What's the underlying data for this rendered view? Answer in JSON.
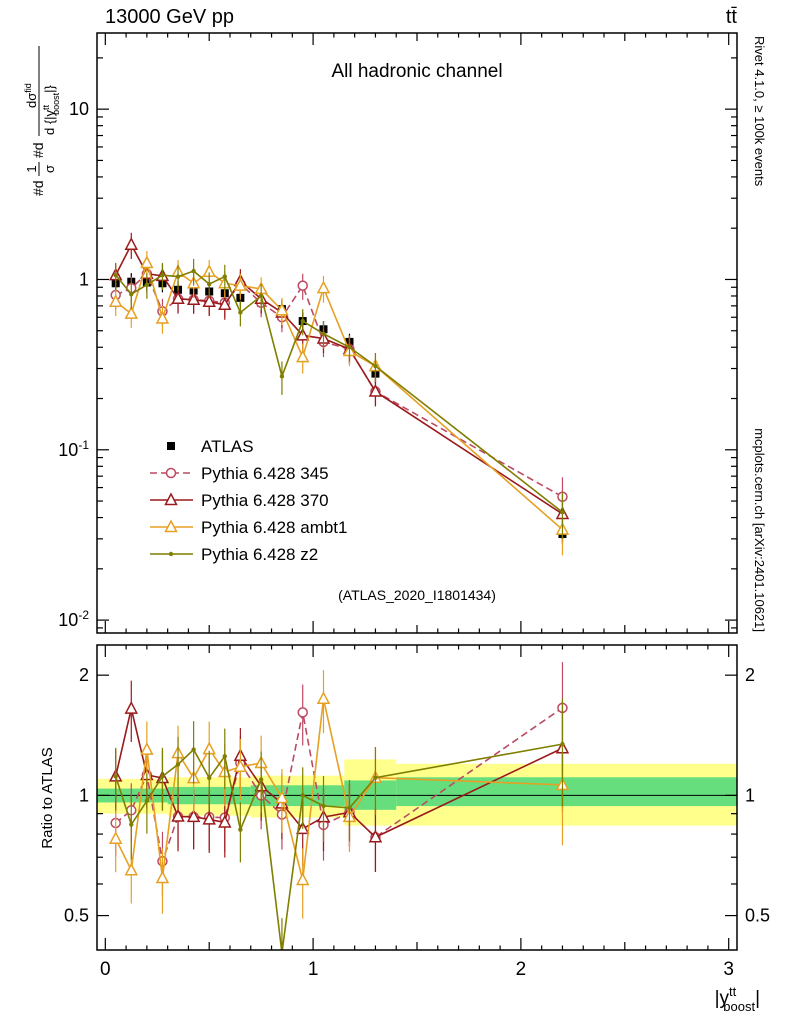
{
  "header": {
    "left": "13000 GeV pp",
    "right": "tt̄"
  },
  "side_notes": {
    "top": "Rivet 4.1.0, ≥ 100k events",
    "bottom": "mcplots.cern.ch [arXiv:2401.10621]"
  },
  "main_panel": {
    "title": "All hadronic channel",
    "watermark": "(ATLAS_2020_I1801434)",
    "ylabel": {
      "d1": "#d",
      "f1num": "1",
      "f1den": "σ",
      "d2": "#d",
      "f2num_base": "dσ",
      "f2num_sup": "fid",
      "f2den_pre": "d {|y",
      "f2den_sup": "tt",
      "f2den_sub": "boost",
      "f2den_post": "|}"
    }
  },
  "ratio_panel": {
    "ylabel": "Ratio to ATLAS"
  },
  "xaxis": {
    "pre": "|y",
    "sup": "tt",
    "sub": "boost",
    "post": "|"
  },
  "chart_data": {
    "type": "line",
    "title": "All hadronic channel",
    "xlabel": "|y^tt_boost|",
    "ylabel": "#d 1/σ #d dσ^fid / d{|y^tt_boost|}",
    "ratio_ylabel": "Ratio to ATLAS",
    "xlim": [
      -0.04,
      3.04
    ],
    "ylim_main": [
      0.0084,
      28
    ],
    "ylim_ratio": [
      0.41,
      2.38
    ],
    "x_major_ticks": [
      0,
      1,
      2,
      3
    ],
    "ratio_major_ticks": [
      0.5,
      1,
      2
    ],
    "legend_position": "inside-left-middle",
    "x": [
      0.05,
      0.125,
      0.2,
      0.275,
      0.35,
      0.425,
      0.5,
      0.575,
      0.65,
      0.75,
      0.85,
      0.95,
      1.05,
      1.175,
      1.3,
      2.2
    ],
    "series": [
      {
        "name": "ATLAS",
        "color": "#000000",
        "marker": "square",
        "filled": true,
        "line": "none",
        "values": [
          0.95,
          0.97,
          0.96,
          0.95,
          0.87,
          0.86,
          0.85,
          0.83,
          0.78,
          0.73,
          0.67,
          0.57,
          0.51,
          0.43,
          0.28,
          0.032
        ],
        "errs": [
          0.11,
          0.12,
          0.12,
          0.11,
          0.1,
          0.1,
          0.1,
          0.1,
          0.09,
          0.09,
          0.08,
          0.07,
          0.06,
          0.05,
          0.034,
          0.004
        ]
      },
      {
        "name": "Pythia 6.428 345",
        "color": "#bc4a62",
        "marker": "circle",
        "filled": false,
        "line": "dashed",
        "values": [
          0.81,
          0.89,
          1.08,
          0.65,
          0.77,
          0.76,
          0.75,
          0.73,
          0.94,
          0.73,
          0.6,
          0.92,
          0.43,
          0.39,
          0.22,
          0.053
        ],
        "errs": [
          0.14,
          0.15,
          0.18,
          0.12,
          0.13,
          0.13,
          0.13,
          0.13,
          0.16,
          0.13,
          0.11,
          0.16,
          0.08,
          0.07,
          0.04,
          0.016
        ]
      },
      {
        "name": "Pythia 6.428 370",
        "color": "#9a1a1c",
        "marker": "triangle",
        "filled": false,
        "line": "solid",
        "values": [
          1.06,
          1.6,
          1.08,
          1.05,
          0.77,
          0.76,
          0.74,
          0.71,
          0.98,
          0.77,
          0.64,
          0.47,
          0.45,
          0.39,
          0.22,
          0.042
        ],
        "errs": [
          0.18,
          0.28,
          0.19,
          0.18,
          0.14,
          0.13,
          0.13,
          0.13,
          0.17,
          0.14,
          0.12,
          0.09,
          0.08,
          0.07,
          0.04,
          0.013
        ]
      },
      {
        "name": "Pythia 6.428 ambt1",
        "color": "#e6a023",
        "marker": "triangle",
        "filled": false,
        "line": "solid",
        "values": [
          0.74,
          0.63,
          1.25,
          0.59,
          1.11,
          0.95,
          1.11,
          0.95,
          0.92,
          0.88,
          0.66,
          0.35,
          0.89,
          0.38,
          0.31,
          0.034
        ],
        "errs": [
          0.13,
          0.11,
          0.22,
          0.11,
          0.19,
          0.17,
          0.19,
          0.17,
          0.16,
          0.15,
          0.12,
          0.07,
          0.16,
          0.07,
          0.06,
          0.01
        ]
      },
      {
        "name": "Pythia 6.428 z2",
        "color": "#7f7f00",
        "marker": "dot",
        "filled": true,
        "line": "solid",
        "values": [
          1.06,
          0.82,
          0.93,
          1.06,
          1.04,
          1.12,
          0.94,
          1.04,
          0.64,
          0.8,
          0.27,
          0.57,
          0.48,
          0.4,
          0.31,
          0.043
        ],
        "errs": [
          0.19,
          0.15,
          0.16,
          0.19,
          0.18,
          0.2,
          0.16,
          0.18,
          0.11,
          0.14,
          0.06,
          0.1,
          0.09,
          0.07,
          0.06,
          0.013
        ]
      }
    ],
    "bands": [
      {
        "x0": -0.04,
        "x1": 0.3,
        "outer_lo": 0.9,
        "outer_hi": 1.1,
        "inner_lo": 0.96,
        "inner_hi": 1.04
      },
      {
        "x0": 0.3,
        "x1": 0.7,
        "outer_lo": 0.89,
        "outer_hi": 1.11,
        "inner_lo": 0.95,
        "inner_hi": 1.05
      },
      {
        "x0": 0.7,
        "x1": 1.15,
        "outer_lo": 0.88,
        "outer_hi": 1.12,
        "inner_lo": 0.94,
        "inner_hi": 1.06
      },
      {
        "x0": 1.15,
        "x1": 1.4,
        "outer_lo": 0.84,
        "outer_hi": 1.23,
        "inner_lo": 0.92,
        "inner_hi": 1.09
      },
      {
        "x0": 1.4,
        "x1": 3.04,
        "outer_lo": 0.84,
        "outer_hi": 1.2,
        "inner_lo": 0.94,
        "inner_hi": 1.11
      }
    ],
    "band_colors": {
      "outer": "#ffff8c",
      "inner": "#66de7e"
    }
  }
}
